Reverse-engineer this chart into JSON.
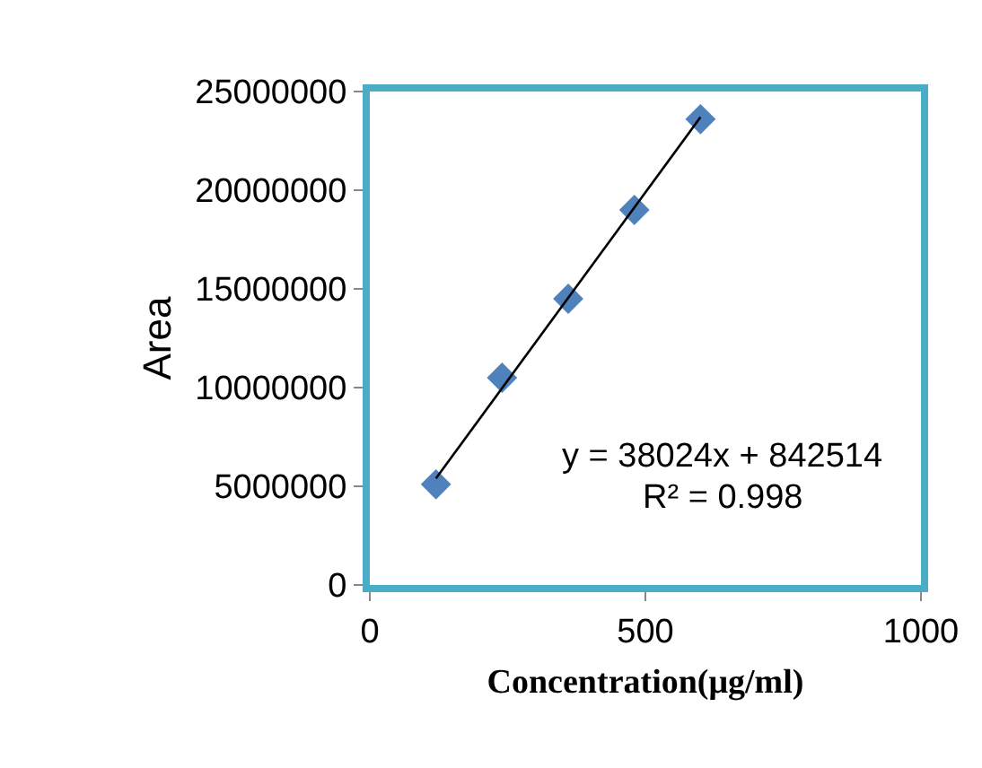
{
  "chart_data": {
    "type": "scatter",
    "xlabel": "Concentration(μg/ml)",
    "ylabel": "Area",
    "x": [
      120,
      240,
      360,
      480,
      600
    ],
    "series": [
      {
        "color": "#4f81bd",
        "values": [
          5100000,
          10500000,
          14500000,
          19000000,
          23600000
        ]
      },
      {
        "type": "line",
        "marker": "none",
        "color": "#000000",
        "x": [
          120,
          600
        ],
        "values": [
          5400000,
          23700000
        ]
      }
    ],
    "xlim": [
      0,
      1000
    ],
    "xticks": [
      0,
      500,
      1000
    ],
    "ylim": [
      0,
      25000000
    ],
    "yticks": [
      0,
      5000000,
      10000000,
      15000000,
      20000000,
      25000000
    ],
    "annotations": [
      "y = 38024x + 842514",
      "R² = 0.998"
    ],
    "marker": "diamond",
    "grid": false
  }
}
